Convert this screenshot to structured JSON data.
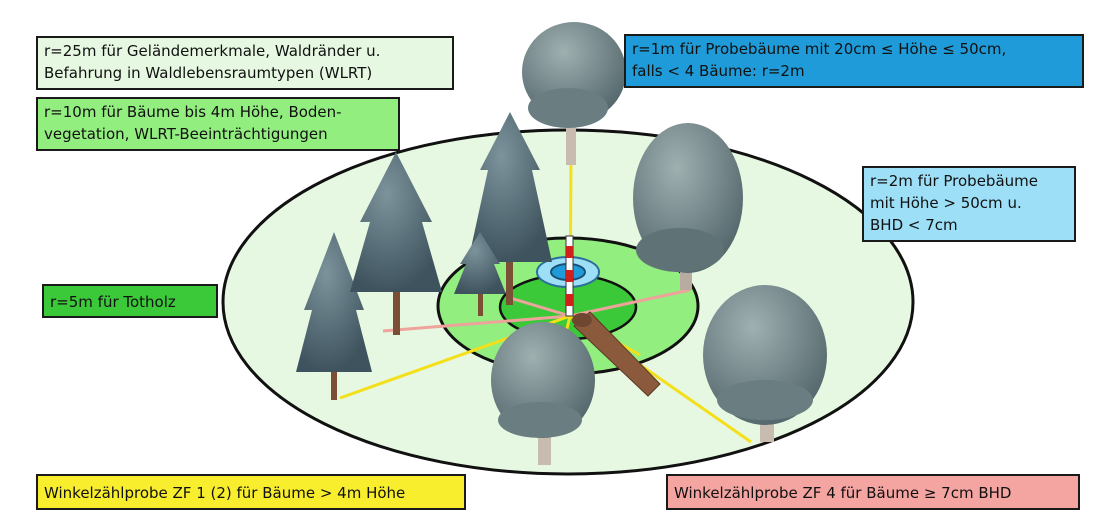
{
  "labels": {
    "r25": "r=25m für Geländemerkmale, Waldränder u.\nBefahrung in Waldlebensraumtypen (WLRT)",
    "r10": "r=10m für Bäume bis 4m Höhe, Boden-\nvegetation, WLRT-Beeinträchtigungen",
    "r5": "r=5m für Totholz",
    "r1": "r=1m für Probebäume mit 20cm ≤ Höhe ≤ 50cm,\nfalls < 4 Bäume: r=2m",
    "r2": "r=2m für Probebäume\nmit Höhe > 50cm u.\nBHD < 7cm",
    "zf1": "Winkelzählprobe ZF 1 (2) für Bäume > 4m Höhe",
    "zf4": "Winkelzählprobe ZF 4 für Bäume ≥ 7cm BHD"
  },
  "colors": {
    "r25_fill": "#e7f8e2",
    "r10_fill": "#92ee7f",
    "r5_fill": "#3bc93a",
    "r1_fill": "#1e9bd8",
    "r2_fill": "#9ddff7",
    "zf1_fill": "#f8ee2e",
    "zf4_fill": "#f4a4a1",
    "zf1_line": "#f3df1a",
    "zf4_line": "#eea39b",
    "conifer": "#4d6470",
    "deciduous": "#6f858a",
    "trunk": "#7a4f35",
    "deadwood": "#8b5a3c"
  },
  "icons": {
    "sample_pole": "survey-pole-icon",
    "conifer": "conifer-tree-icon",
    "deciduous": "deciduous-tree-icon",
    "deadwood": "deadwood-log-icon"
  }
}
